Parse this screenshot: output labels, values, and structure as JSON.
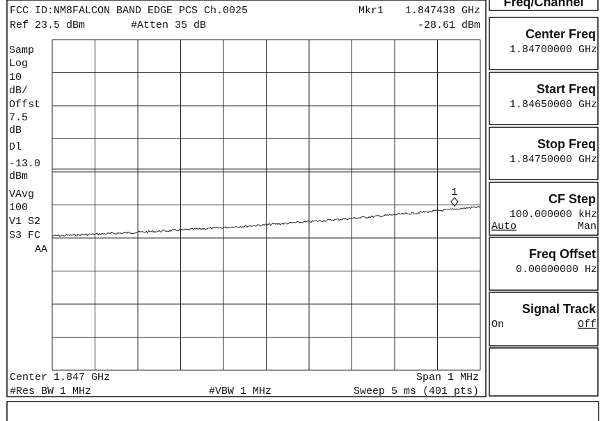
{
  "header": {
    "title": "FCC ID:NM8FALCON BAND EDGE PCS Ch.0025",
    "marker_label": "Mkr1",
    "marker_freq": "1.847438 GHz",
    "ref": "Ref 23.5 dBm",
    "atten": "#Atten 35 dB",
    "marker_level": "-28.61 dBm"
  },
  "left_labels": [
    "Samp",
    "Log",
    "10",
    "dB/",
    "Offst",
    "7.5",
    "dB",
    "Dl",
    "-13.0",
    "dBm",
    "VAvg",
    "100",
    "V1  S2",
    "S3  FC",
    "AA"
  ],
  "marker": "1",
  "footer": {
    "center": "Center 1.847 GHz",
    "span": "Span 1 MHz",
    "rbw": "#Res BW 1 MHz",
    "vbw": "#VBW 1 MHz",
    "sweep": "Sweep 5 ms (401 pts)"
  },
  "softkeys": {
    "menu_title": "Freq/Channel",
    "keys": [
      {
        "label": "Center Freq",
        "value": "1.84700000 GHz"
      },
      {
        "label": "Start Freq",
        "value": "1.84650000 GHz"
      },
      {
        "label": "Stop Freq",
        "value": "1.84750000 GHz"
      },
      {
        "label": "CF Step",
        "value": "100.000000 kHz",
        "options": [
          "Auto",
          "Man"
        ]
      },
      {
        "label": "Freq Offset",
        "value": "0.00000000 Hz"
      },
      {
        "label": "Signal Track",
        "options": [
          "On",
          "Off"
        ]
      }
    ]
  }
}
